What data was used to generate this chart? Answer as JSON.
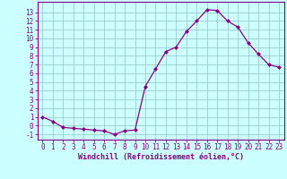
{
  "x": [
    0,
    1,
    2,
    3,
    4,
    5,
    6,
    7,
    8,
    9,
    10,
    11,
    12,
    13,
    14,
    15,
    16,
    17,
    18,
    19,
    20,
    21,
    22,
    23
  ],
  "y": [
    1.0,
    0.5,
    -0.2,
    -0.3,
    -0.4,
    -0.5,
    -0.6,
    -1.0,
    -0.6,
    -0.5,
    4.5,
    6.5,
    8.5,
    9.0,
    10.8,
    12.0,
    13.3,
    13.2,
    12.0,
    11.3,
    9.5,
    8.2,
    7.0,
    6.7
  ],
  "line_color": "#880088",
  "marker": "D",
  "marker_size": 2.0,
  "bg_color": "#ccffff",
  "grid_color": "#99cccc",
  "xlabel": "Windchill (Refroidissement éolien,°C)",
  "xlabel_color": "#880088",
  "ylabel_ticks": [
    -1,
    0,
    1,
    2,
    3,
    4,
    5,
    6,
    7,
    8,
    9,
    10,
    11,
    12,
    13
  ],
  "xlim": [
    -0.5,
    23.5
  ],
  "ylim": [
    -1.6,
    14.2
  ],
  "tick_color": "#880088",
  "spine_color": "#880088",
  "tick_fontsize": 5.5,
  "xlabel_fontsize": 6.0,
  "font_family": "monospace",
  "linewidth": 0.9
}
